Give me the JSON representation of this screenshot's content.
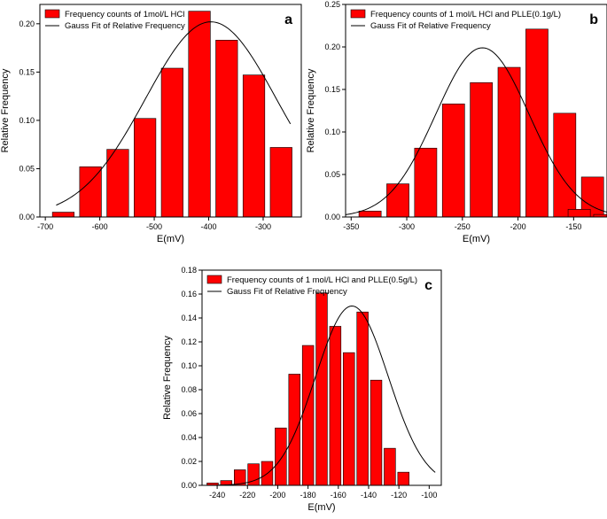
{
  "colors": {
    "bar_fill": "#ff0000",
    "bar_stroke": "#000000",
    "curve": "#000000"
  },
  "chart_data": [
    {
      "type": "bar",
      "panel_label": "a",
      "title": "",
      "xlabel": "E(mV)",
      "ylabel": "Relative Frequency",
      "xlim": [
        -710,
        -230
      ],
      "ylim": [
        0,
        0.22
      ],
      "xticks": [
        -700,
        -600,
        -500,
        -400,
        -300
      ],
      "yticks": [
        0,
        0.05,
        0.1,
        0.15,
        0.2
      ],
      "xtick_labels": [
        "-700",
        "-600",
        "-500",
        "-400",
        "-300"
      ],
      "ytick_labels": [
        "0.00",
        "0.05",
        "0.10",
        "0.15",
        "0.20"
      ],
      "bin_width": 40,
      "bins": [
        -667,
        -617,
        -567,
        -517,
        -467,
        -417,
        -367,
        -317,
        -267
      ],
      "values": [
        0.005,
        0.052,
        0.07,
        0.102,
        0.154,
        0.213,
        0.183,
        0.147,
        0.072
      ],
      "fit": {
        "type": "gauss",
        "center": -396,
        "sigma": 120,
        "amplitude": 0.202,
        "x_range": [
          -680,
          -250
        ]
      },
      "legend": [
        "Frequency counts of 1mol/L HCl",
        "Gauss Fit of Relative Frequency"
      ],
      "legend_position": "top-left"
    },
    {
      "type": "bar",
      "panel_label": "b",
      "title": "",
      "xlabel": "E(mV)",
      "ylabel": "Relative Frequency",
      "xlim": [
        -355,
        -120
      ],
      "ylim": [
        0,
        0.25
      ],
      "xticks": [
        -350,
        -300,
        -250,
        -200,
        -150
      ],
      "yticks": [
        0,
        0.05,
        0.1,
        0.15,
        0.2,
        0.25
      ],
      "xtick_labels": [
        "-350",
        "-300",
        "-250",
        "-200",
        "-150"
      ],
      "ytick_labels": [
        "0.00",
        "0.05",
        "0.10",
        "0.15",
        "0.20",
        "0.25"
      ],
      "bin_width": 20,
      "bins": [
        -333,
        -308,
        -283,
        -258,
        -233,
        -208,
        -183,
        -158,
        -133
      ],
      "values": [
        0.007,
        0.039,
        0.081,
        0.133,
        0.158,
        0.176,
        0.221,
        0.122,
        0.047
      ],
      "extra_bins": [
        -145,
        -122
      ],
      "extra_values": [
        0.009,
        0.003
      ],
      "fit": {
        "type": "gauss",
        "center": -232,
        "sigma": 42,
        "amplitude": 0.199,
        "x_range": [
          -355,
          -120
        ]
      },
      "legend": [
        "Frequency counts of 1 mol/L HCl and PLLE(0.1g/L)",
        "Gauss Fit of Relative Frequency"
      ],
      "legend_position": "top-left"
    },
    {
      "type": "bar",
      "panel_label": "c",
      "title": "",
      "xlabel": "E(mV)",
      "ylabel": "Relative Frequency",
      "xlim": [
        -250,
        -92
      ],
      "ylim": [
        0,
        0.18
      ],
      "xticks": [
        -240,
        -220,
        -200,
        -180,
        -160,
        -140,
        -120,
        -100
      ],
      "yticks": [
        0,
        0.02,
        0.04,
        0.06,
        0.08,
        0.1,
        0.12,
        0.14,
        0.16,
        0.18
      ],
      "xtick_labels": [
        "-240",
        "-220",
        "-200",
        "-180",
        "-160",
        "-140",
        "-120",
        "-100"
      ],
      "ytick_labels": [
        "0.00",
        "0.02",
        "0.04",
        "0.06",
        "0.08",
        "0.10",
        "0.12",
        "0.14",
        "0.16",
        "0.18"
      ],
      "bin_width": 7.5,
      "bins": [
        -243,
        -234,
        -225,
        -216,
        -207,
        -198,
        -189,
        -180,
        -171,
        -162,
        -153,
        -144,
        -135,
        -126,
        -117,
        -108,
        -99
      ],
      "values": [
        0.002,
        0.004,
        0.013,
        0.018,
        0.02,
        0.048,
        0.093,
        0.117,
        0.161,
        0.133,
        0.111,
        0.145,
        0.088,
        0.031,
        0.011,
        0,
        0
      ],
      "fit": {
        "type": "gauss",
        "center": -151,
        "sigma": 24,
        "amplitude": 0.15,
        "x_range": [
          -250,
          -96
        ]
      },
      "legend": [
        "Frequency counts of 1 mol/L HCl and PLLE(0.5g/L)",
        "Gauss Fit of Relative Frequency"
      ],
      "legend_position": "top-left"
    }
  ]
}
